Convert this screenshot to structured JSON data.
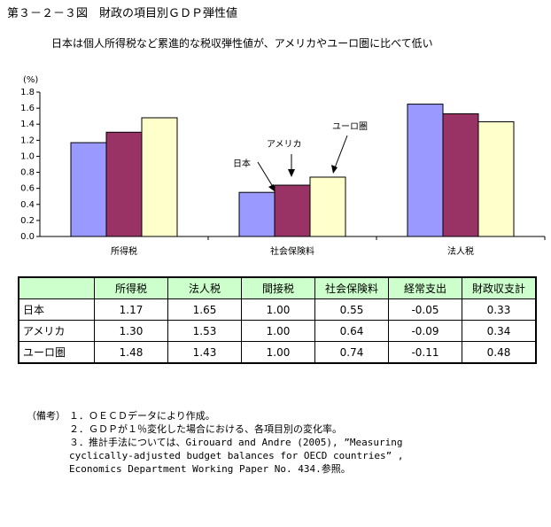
{
  "chart_data": {
    "type": "bar",
    "title": "第３－２－３図　財政の項目別ＧＤＰ弾性値",
    "subtitle": "日本は個人所得税など累進的な税収弾性値が、アメリカやユーロ圏に比べて低い",
    "y_unit": "(%)",
    "categories": [
      "所得税",
      "社会保険料",
      "法人税"
    ],
    "series": [
      {
        "name": "日本",
        "color": "#9999ff",
        "values": [
          1.17,
          0.55,
          1.65
        ]
      },
      {
        "name": "アメリカ",
        "color": "#993366",
        "values": [
          1.3,
          0.64,
          1.53
        ]
      },
      {
        "name": "ユーロ圏",
        "color": "#ffffcc",
        "values": [
          1.48,
          0.74,
          1.43
        ]
      }
    ],
    "ylim": [
      0,
      1.8
    ],
    "yticks": [
      {
        "value": 0,
        "label": "0.0"
      },
      {
        "value": 0.2,
        "label": "0.2"
      },
      {
        "value": 0.4,
        "label": "0.4"
      },
      {
        "value": 0.6,
        "label": "0.6"
      },
      {
        "value": 0.8,
        "label": "0.8"
      },
      {
        "value": 1.0,
        "label": "1.0"
      },
      {
        "value": 1.2,
        "label": "1.2"
      },
      {
        "value": 1.4,
        "label": "1.4"
      },
      {
        "value": 1.6,
        "label": "1.6"
      },
      {
        "value": 1.8,
        "label": "1.8"
      }
    ],
    "grid": false
  },
  "table": {
    "header": [
      "所得税",
      "法人税",
      "間接税",
      "社会保険料",
      "経常支出",
      "財政収支計"
    ],
    "rows": [
      [
        "日本",
        "1.17",
        "1.65",
        "1.00",
        "0.55",
        "-0.05",
        "0.33"
      ],
      [
        "アメリカ",
        "1.30",
        "1.53",
        "1.00",
        "0.64",
        "-0.09",
        "0.34"
      ],
      [
        "ユーロ圏",
        "1.48",
        "1.43",
        "1.00",
        "0.74",
        "-0.11",
        "0.48"
      ]
    ]
  },
  "notes": {
    "label": "（備考）",
    "items": [
      "１．ＯＥＣＤデータにより作成。",
      "２．ＧＤＰが１％変化した場合における、各項目別の変化率。",
      "３．推計手法については、Girouard and Andre (2005), ”Measuring cyclically-adjusted budget balances for OECD countries” , Economics Department Working Paper No. 434.参照。"
    ]
  }
}
